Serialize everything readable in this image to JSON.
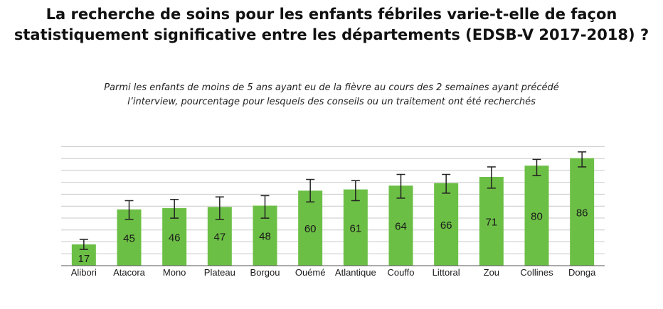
{
  "title_lines": [
    "La recherche de soins pour les enfants fébriles varie-t-elle de façon",
    "statistiquement significative entre les départements (EDSB-V 2017-2018) ?"
  ],
  "subtitle_lines": [
    "Parmi les enfants de moins de 5 ans ayant eu de la fièvre au cours des 2 semaines ayant précédé",
    "l’interview, pourcentage pour lesquels des conseils ou un traitement ont été recherchés"
  ],
  "colors": {
    "bar": "#6cbf45",
    "error_bar": "#222222",
    "grid": "#c8c8c8"
  },
  "chart_data": {
    "type": "bar",
    "categories": [
      "Alibori",
      "Atacora",
      "Mono",
      "Plateau",
      "Borgou",
      "Ouémé",
      "Atlantique",
      "Couffo",
      "Littoral",
      "Zou",
      "Collines",
      "Donga"
    ],
    "values": [
      17,
      45,
      46,
      47,
      48,
      60,
      61,
      64,
      66,
      71,
      80,
      86
    ],
    "error_low": [
      13,
      37,
      38,
      37,
      38,
      51,
      52,
      54,
      58,
      62,
      72,
      79
    ],
    "error_high": [
      21,
      52,
      53,
      55,
      56,
      69,
      68,
      73,
      73,
      79,
      85,
      91
    ],
    "ylim": [
      0,
      100
    ],
    "grid": true
  }
}
